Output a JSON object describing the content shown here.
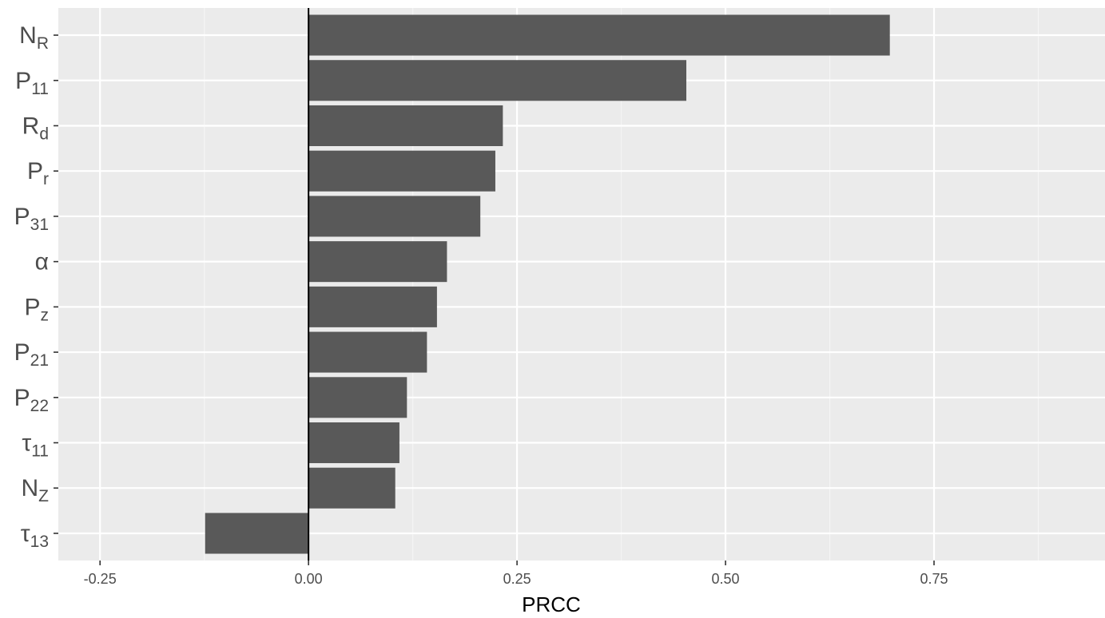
{
  "chart_data": {
    "type": "bar",
    "orientation": "horizontal",
    "xlabel": "PRCC",
    "ylabel": "",
    "xlim": [
      -0.3,
      0.955
    ],
    "x_ticks": [
      {
        "value": -0.25,
        "label": "-0.25"
      },
      {
        "value": 0.0,
        "label": "0.00"
      },
      {
        "value": 0.25,
        "label": "0.25"
      },
      {
        "value": 0.5,
        "label": "0.50"
      },
      {
        "value": 0.75,
        "label": "0.75"
      }
    ],
    "x_minor_ticks": [
      -0.125,
      0.125,
      0.375,
      0.625,
      0.875
    ],
    "grid": true,
    "zero_line": true,
    "categories": [
      {
        "label": "N",
        "sub": "R"
      },
      {
        "label": "P",
        "sub": "11"
      },
      {
        "label": "R",
        "sub": "d"
      },
      {
        "label": "P",
        "sub": "r"
      },
      {
        "label": "P",
        "sub": "31"
      },
      {
        "label": "α",
        "sub": ""
      },
      {
        "label": "P",
        "sub": "z"
      },
      {
        "label": "P",
        "sub": "21"
      },
      {
        "label": "P",
        "sub": "22"
      },
      {
        "label": "τ",
        "sub": "11"
      },
      {
        "label": "N",
        "sub": "Z"
      },
      {
        "label": "τ",
        "sub": "13"
      }
    ],
    "values": [
      0.697,
      0.453,
      0.233,
      0.224,
      0.206,
      0.166,
      0.154,
      0.142,
      0.118,
      0.109,
      0.104,
      -0.124
    ],
    "colors": {
      "bar": "#595959",
      "panel": "#ebebeb",
      "grid_major": "#ffffff",
      "grid_minor": "#f5f5f5",
      "zero_line": "#000000",
      "tick": "#333333"
    }
  }
}
